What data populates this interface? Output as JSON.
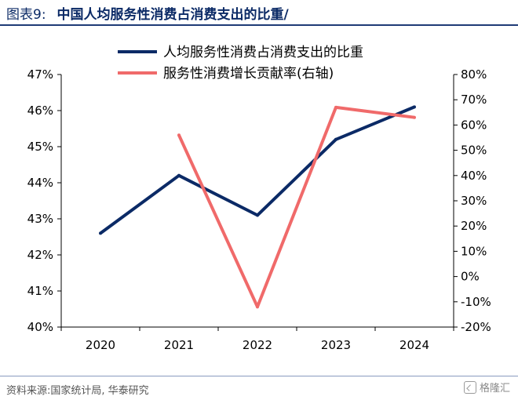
{
  "header": {
    "label": "图表9:",
    "title": "中国人均服务性消费占消费支出的比重/"
  },
  "footer": {
    "source": "资料来源:国家统计局, 华泰研究",
    "watermark": "格隆汇"
  },
  "colors": {
    "series_share": "#0b2a66",
    "series_growth": "#f06a6a",
    "axis": "#000000"
  },
  "chart_data": {
    "type": "line",
    "categories": [
      "2020",
      "2021",
      "2022",
      "2023",
      "2024"
    ],
    "left_axis": {
      "range": [
        40,
        47
      ],
      "ticks": [
        40,
        41,
        42,
        43,
        44,
        45,
        46,
        47
      ],
      "tick_labels": [
        "40%",
        "41%",
        "42%",
        "43%",
        "44%",
        "45%",
        "46%",
        "47%"
      ]
    },
    "right_axis": {
      "range": [
        -20,
        80
      ],
      "ticks": [
        -20,
        -10,
        0,
        10,
        20,
        30,
        40,
        50,
        60,
        70,
        80
      ],
      "tick_labels": [
        "-20%",
        "-10%",
        "0%",
        "10%",
        "20%",
        "30%",
        "40%",
        "50%",
        "60%",
        "70%",
        "80%"
      ]
    },
    "series": [
      {
        "name": "人均服务性消费占消费支出的比重",
        "axis": "left",
        "values": [
          42.6,
          44.2,
          43.1,
          45.2,
          46.1
        ]
      },
      {
        "name": "服务性消费增长贡献率(右轴)",
        "axis": "right",
        "values": [
          null,
          56,
          -12,
          67,
          63
        ]
      }
    ],
    "legend": "top-center",
    "grid": false
  }
}
